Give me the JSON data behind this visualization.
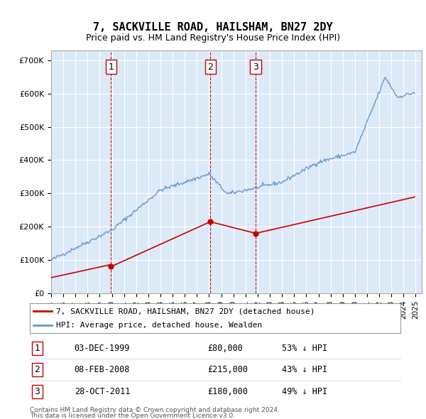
{
  "title": "7, SACKVILLE ROAD, HAILSHAM, BN27 2DY",
  "subtitle": "Price paid vs. HM Land Registry's House Price Index (HPI)",
  "legend_label_red": "7, SACKVILLE ROAD, HAILSHAM, BN27 2DY (detached house)",
  "legend_label_blue": "HPI: Average price, detached house, Wealden",
  "footer_line1": "Contains HM Land Registry data © Crown copyright and database right 2024.",
  "footer_line2": "This data is licensed under the Open Government Licence v3.0.",
  "transactions": [
    {
      "num": 1,
      "date_str": "03-DEC-1999",
      "date_x": 1999.92,
      "price": 80000,
      "label": "53% ↓ HPI"
    },
    {
      "num": 2,
      "date_str": "08-FEB-2008",
      "date_x": 2008.1,
      "price": 215000,
      "label": "43% ↓ HPI"
    },
    {
      "num": 3,
      "date_str": "28-OCT-2011",
      "date_x": 2011.82,
      "price": 180000,
      "label": "49% ↓ HPI"
    }
  ],
  "ylim": [
    0,
    730000
  ],
  "xlim_start": 1995.0,
  "xlim_end": 2025.5,
  "background_color": "#dce9f7",
  "red_color": "#cc0000",
  "blue_color": "#6699cc",
  "grid_color": "#ffffff",
  "vline_color": "#cc0000"
}
